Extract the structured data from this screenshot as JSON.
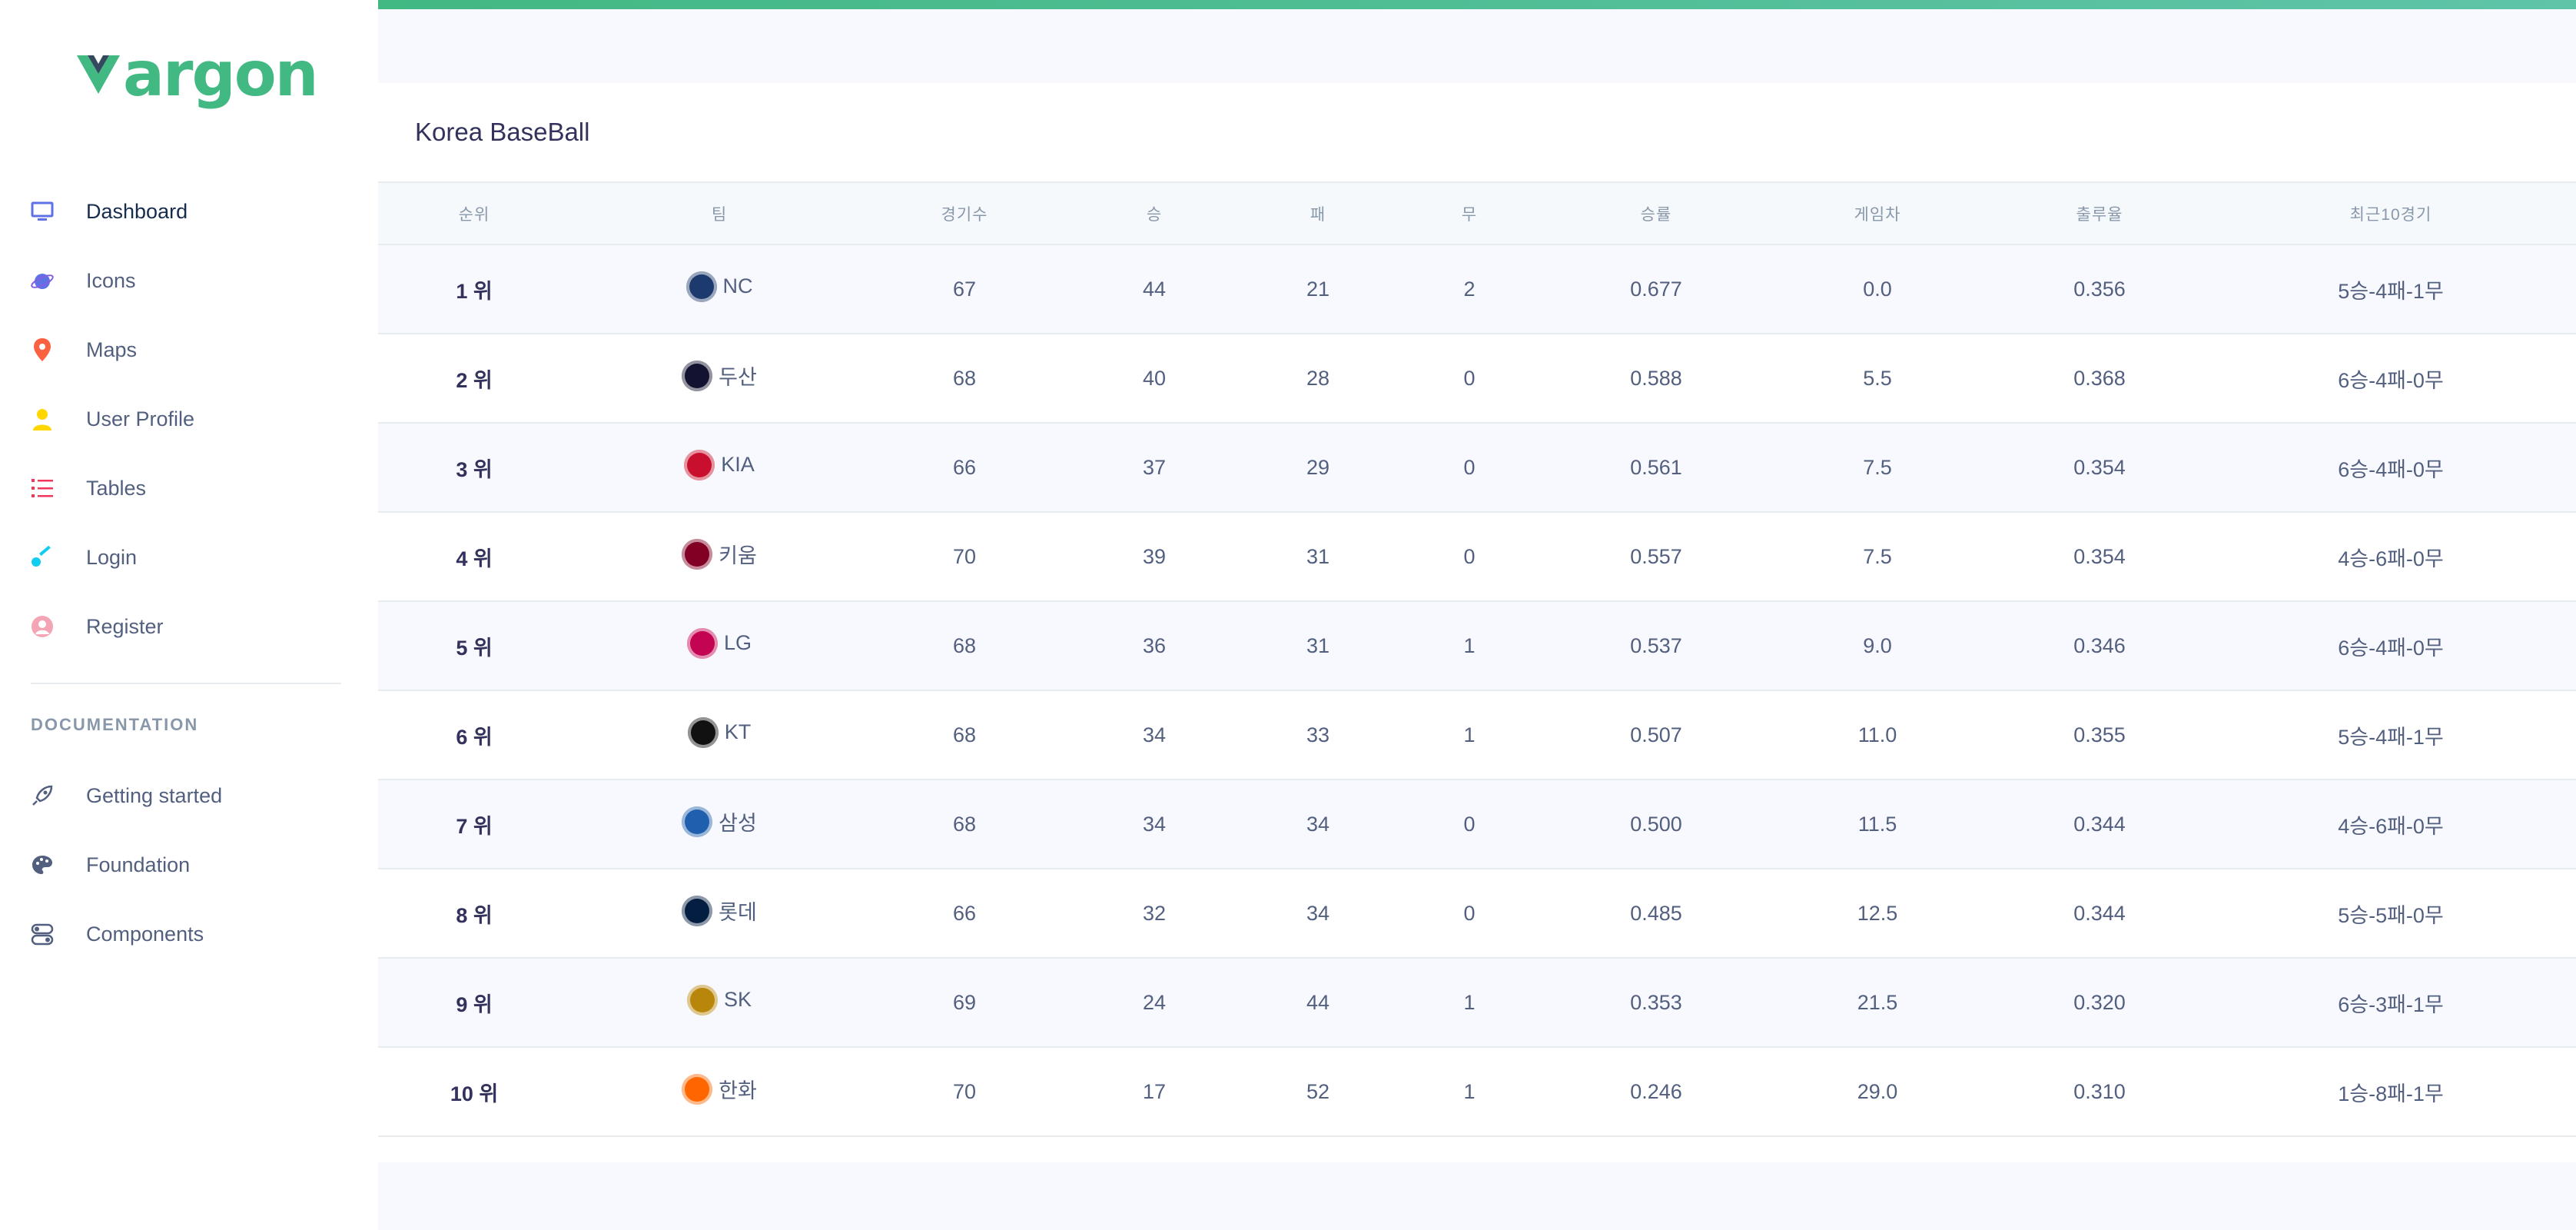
{
  "brand": {
    "text": "argon",
    "color": "#42b883"
  },
  "sidebar": {
    "items": [
      {
        "label": "Dashboard",
        "icon": "tv-icon",
        "color": "#5e72e4",
        "active": true
      },
      {
        "label": "Icons",
        "icon": "planet-icon",
        "color": "#5e72e4"
      },
      {
        "label": "Maps",
        "icon": "pin-icon",
        "color": "#fb6340"
      },
      {
        "label": "User Profile",
        "icon": "user-icon",
        "color": "#ffd600"
      },
      {
        "label": "Tables",
        "icon": "bullet-list-icon",
        "color": "#f5365c"
      },
      {
        "label": "Login",
        "icon": "key-icon",
        "color": "#11cdef"
      },
      {
        "label": "Register",
        "icon": "circle-user-icon",
        "color": "#f3a4b5"
      }
    ],
    "doc_heading": "DOCUMENTATION",
    "doc_items": [
      {
        "label": "Getting started",
        "icon": "spaceship-icon"
      },
      {
        "label": "Foundation",
        "icon": "palette-icon"
      },
      {
        "label": "Components",
        "icon": "components-icon"
      }
    ]
  },
  "card": {
    "title": "Korea BaseBall"
  },
  "table": {
    "headers": [
      "순위",
      "팀",
      "경기수",
      "승",
      "패",
      "무",
      "승률",
      "게임차",
      "출루율",
      "최근10경기"
    ],
    "rows": [
      {
        "rank": "1 위",
        "team": "NC",
        "logo_color": "#1d3a6e",
        "games": "67",
        "win": "44",
        "lose": "21",
        "draw": "2",
        "pct": "0.677",
        "gb": "0.0",
        "obp": "0.356",
        "last10": "5승-4패-1무"
      },
      {
        "rank": "2 위",
        "team": "두산",
        "logo_color": "#131230",
        "games": "68",
        "win": "40",
        "lose": "28",
        "draw": "0",
        "pct": "0.588",
        "gb": "5.5",
        "obp": "0.368",
        "last10": "6승-4패-0무"
      },
      {
        "rank": "3 위",
        "team": "KIA",
        "logo_color": "#c8102e",
        "games": "66",
        "win": "37",
        "lose": "29",
        "draw": "0",
        "pct": "0.561",
        "gb": "7.5",
        "obp": "0.354",
        "last10": "6승-4패-0무"
      },
      {
        "rank": "4 위",
        "team": "키움",
        "logo_color": "#820024",
        "games": "70",
        "win": "39",
        "lose": "31",
        "draw": "0",
        "pct": "0.557",
        "gb": "7.5",
        "obp": "0.354",
        "last10": "4승-6패-0무"
      },
      {
        "rank": "5 위",
        "team": "LG",
        "logo_color": "#c30452",
        "games": "68",
        "win": "36",
        "lose": "31",
        "draw": "1",
        "pct": "0.537",
        "gb": "9.0",
        "obp": "0.346",
        "last10": "6승-4패-0무"
      },
      {
        "rank": "6 위",
        "team": "KT",
        "logo_color": "#111111",
        "games": "68",
        "win": "34",
        "lose": "33",
        "draw": "1",
        "pct": "0.507",
        "gb": "11.0",
        "obp": "0.355",
        "last10": "5승-4패-1무"
      },
      {
        "rank": "7 위",
        "team": "삼성",
        "logo_color": "#1f5fae",
        "games": "68",
        "win": "34",
        "lose": "34",
        "draw": "0",
        "pct": "0.500",
        "gb": "11.5",
        "obp": "0.344",
        "last10": "4승-6패-0무"
      },
      {
        "rank": "8 위",
        "team": "롯데",
        "logo_color": "#041e42",
        "games": "66",
        "win": "32",
        "lose": "34",
        "draw": "0",
        "pct": "0.485",
        "gb": "12.5",
        "obp": "0.344",
        "last10": "5승-5패-0무"
      },
      {
        "rank": "9 위",
        "team": "SK",
        "logo_color": "#b8860b",
        "games": "69",
        "win": "24",
        "lose": "44",
        "draw": "1",
        "pct": "0.353",
        "gb": "21.5",
        "obp": "0.320",
        "last10": "6승-3패-1무"
      },
      {
        "rank": "10 위",
        "team": "한화",
        "logo_color": "#ff6600",
        "games": "70",
        "win": "17",
        "lose": "52",
        "draw": "1",
        "pct": "0.246",
        "gb": "29.0",
        "obp": "0.310",
        "last10": "1승-8패-1무"
      }
    ]
  }
}
